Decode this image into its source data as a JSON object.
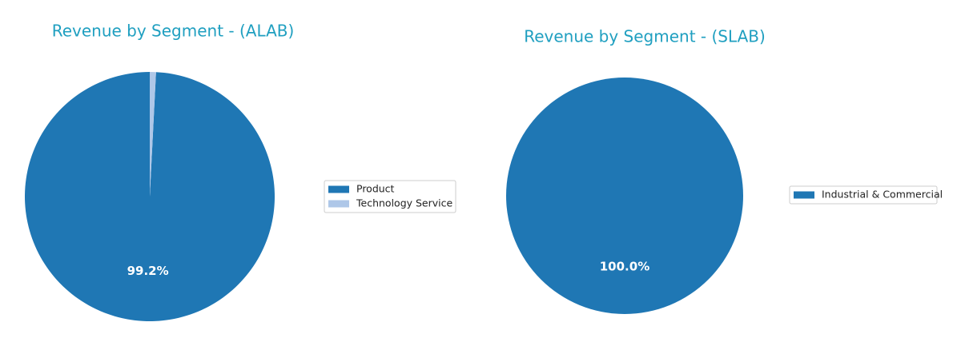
{
  "chart_data": [
    {
      "type": "pie",
      "title": "Revenue by Segment - (ALAB)",
      "categories": [
        "Product",
        "Technology Service"
      ],
      "values": [
        99.2,
        0.8
      ],
      "value_labels": [
        "99.2%",
        null
      ],
      "colors": [
        "#1f77b4",
        "#aec7e8"
      ],
      "legend": "right"
    },
    {
      "type": "pie",
      "title": "Revenue by Segment - (SLAB)",
      "categories": [
        "Industrial & Commercial"
      ],
      "values": [
        100
      ],
      "value_labels": [
        "100.0%"
      ],
      "colors": [
        "#1f77b4"
      ],
      "legend": "right"
    }
  ]
}
